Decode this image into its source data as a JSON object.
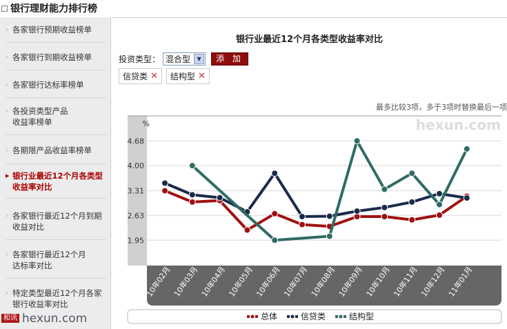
{
  "page_title": "银行理财能力排行榜",
  "sidebar": {
    "items": [
      {
        "label": "各家银行预期收益榜单"
      },
      {
        "label": "各家银行到期收益榜单"
      },
      {
        "label": "各家银行达标率榜单"
      },
      {
        "label": "各投资类型产品\n收益率榜单"
      },
      {
        "label": "各期限产品收益率榜单"
      },
      {
        "label": "银行业最近12个月各类型\n收益率对比",
        "active": true
      },
      {
        "label": "各家银行最近12个月到期\n收益对比"
      },
      {
        "label": "各家银行最近12个月\n达标率对比"
      },
      {
        "label": "特定类型最近12个月各家\n银行收益率对比"
      }
    ]
  },
  "main": {
    "chart_title": "银行业最近12个月各类型收益率对比",
    "type_label": "投资类型：",
    "type_value": "混合型",
    "add_label": "添 加",
    "tags": [
      {
        "label": "信贷类"
      },
      {
        "label": "结构型"
      }
    ],
    "note": "最多比较3项，多于3项时替换最后一项",
    "watermark": "hexun.com",
    "bottom_logo": "和讯 hexun.com"
  },
  "chart_data": {
    "type": "line",
    "ylabel": "%",
    "yticks": [
      1.95,
      2.63,
      3.31,
      4.0,
      4.68
    ],
    "grid": true,
    "legend": "bottom",
    "categories": [
      "10年02月",
      "10年03月",
      "10年04月",
      "10年05月",
      "10年06月",
      "10年07月",
      "10年08月",
      "10年09月",
      "10年10月",
      "10年11月",
      "10年12月",
      "11年01月"
    ],
    "series": [
      {
        "name": "总体",
        "color": "#a01010",
        "values": [
          3.31,
          3.0,
          3.04,
          2.23,
          2.68,
          2.38,
          2.33,
          2.6,
          2.6,
          2.51,
          2.64,
          3.16
        ]
      },
      {
        "name": "信贷类",
        "color": "#1c2a4a",
        "values": [
          3.52,
          3.2,
          3.12,
          2.73,
          3.79,
          2.6,
          2.61,
          2.75,
          2.85,
          3.0,
          3.23,
          3.11
        ]
      },
      {
        "name": "结构型",
        "color": "#2f6b63",
        "values": [
          null,
          4.0,
          null,
          null,
          1.95,
          null,
          2.06,
          4.68,
          3.35,
          3.79,
          2.93,
          4.46
        ]
      }
    ]
  }
}
